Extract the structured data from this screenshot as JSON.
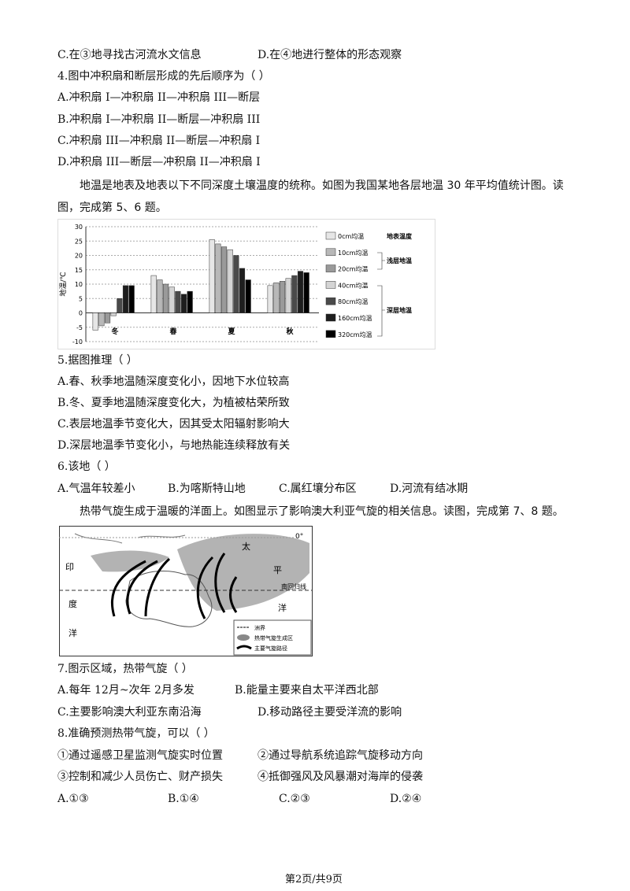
{
  "q3_options": [
    "C.在③地寻找古河流水文信息",
    "D.在④地进行整体的形态观察"
  ],
  "q4": {
    "stem": "4.图中冲积扇和断层形成的先后顺序为（    ）",
    "options": [
      "A.冲积扇 I—冲积扇 II—冲积扇 III—断层",
      "B.冲积扇 I—冲积扇 II—断层—冲积扇 III",
      "C.冲积扇 III—冲积扇 II—断层—冲积扇 I",
      "D.冲积扇 III—断层—冲积扇 II—冲积扇 I"
    ]
  },
  "passage1": "地温是地表及地表以下不同深度土壤温度的统称。如图为我国某地各层地温 30 年平均值统计图。读图，完成第 5、6 题。",
  "chart_data": {
    "type": "bar",
    "y_label": "地温/℃",
    "categories": [
      "冬",
      "春",
      "夏",
      "秋"
    ],
    "series": [
      {
        "name": "0cm均温",
        "color": "#e6e6e6",
        "values": [
          -6,
          13,
          25.5,
          9.5
        ]
      },
      {
        "name": "10cm均温",
        "color": "#b8b8b8",
        "values": [
          -4.5,
          11.5,
          24,
          10.5
        ]
      },
      {
        "name": "20cm均温",
        "color": "#9a9a9a",
        "values": [
          -3.5,
          10,
          23,
          11
        ]
      },
      {
        "name": "40cm均温",
        "color": "#d4d4d4",
        "values": [
          -1,
          9,
          22,
          12
        ]
      },
      {
        "name": "80cm均温",
        "color": "#4a4a4a",
        "values": [
          5,
          7.5,
          20,
          13
        ]
      },
      {
        "name": "160cm均温",
        "color": "#1e1e1e",
        "values": [
          9.5,
          6.5,
          15.5,
          14.5
        ]
      },
      {
        "name": "320cm均温",
        "color": "#000000",
        "values": [
          9.5,
          7.5,
          11.5,
          14
        ]
      }
    ],
    "legend_groups": [
      "地表温度",
      "浅层地温",
      "深层地温"
    ],
    "ylim": [
      -10,
      30
    ],
    "yticks": [
      -10,
      -5,
      0,
      5,
      10,
      15,
      20,
      25,
      30
    ],
    "grid": true
  },
  "q5": {
    "stem": "5.据图推理（    ）",
    "options": [
      "A.春、秋季地温随深度变化小，因地下水位较高",
      "B.冬、夏季地温随深度变化大，为植被枯荣所致",
      "C.表层地温季节变化大，因其受太阳辐射影响大",
      "D.深层地温季节变化小，与地热能连续释放有关"
    ]
  },
  "q6": {
    "stem": "6.该地（    ）",
    "options": [
      "A.气温年较差小",
      "B.为喀斯特山地",
      "C.属红壤分布区",
      "D.河流有结冰期"
    ]
  },
  "passage2": "热带气旋生成于温暖的洋面上。如图显示了影响澳大利亚气旋的相关信息。读图，完成第 7、8 题。",
  "map": {
    "equator": "0°",
    "tropic": "南回归线",
    "ocean1": [
      "印",
      "度",
      "洋"
    ],
    "ocean2": [
      "太",
      "平",
      "洋"
    ],
    "legend": [
      "洲界",
      "热带气旋生成区",
      "主要气旋路径"
    ]
  },
  "q7": {
    "stem": "7.图示区域，热带气旋（    ）",
    "options": [
      "A.每年 12月~次年 2月多发",
      "B.能量主要来自太平洋西北部",
      "C.主要影响澳大利亚东南沿海",
      "D.移动路径主要受洋流的影响"
    ]
  },
  "q8": {
    "stem": "8.准确预测热带气旋，可以（    ）",
    "items": [
      "①通过遥感卫星监测气旋实时位置",
      "②通过导航系统追踪气旋移动方向",
      "③控制和减少人员伤亡、财产损失",
      "④抵御强风及风暴潮对海岸的侵袭"
    ],
    "options": [
      "A.①③",
      "B.①④",
      "C.②③",
      "D.②④"
    ]
  },
  "footer": "第2页/共9页"
}
